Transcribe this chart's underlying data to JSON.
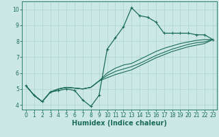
{
  "xlabel": "Humidex (Indice chaleur)",
  "bg_color": "#cce8e4",
  "grid_color": "#b0d8d0",
  "line_color": "#1a6b5a",
  "spine_color": "#2a7a68",
  "xlim": [
    -0.5,
    23.5
  ],
  "ylim": [
    3.7,
    10.5
  ],
  "xticks": [
    0,
    1,
    2,
    3,
    4,
    5,
    6,
    7,
    8,
    9,
    10,
    11,
    12,
    13,
    14,
    15,
    16,
    17,
    18,
    19,
    20,
    21,
    22,
    23
  ],
  "yticks": [
    4,
    5,
    6,
    7,
    8,
    9,
    10
  ],
  "series": [
    [
      5.2,
      4.6,
      4.2,
      4.8,
      4.9,
      5.0,
      4.9,
      4.3,
      3.9,
      4.6,
      7.5,
      8.2,
      8.9,
      10.1,
      9.6,
      9.5,
      9.2,
      8.5,
      8.5,
      8.5,
      8.5,
      8.4,
      8.4,
      8.1
    ],
    [
      5.2,
      4.6,
      4.2,
      4.8,
      5.0,
      5.1,
      5.05,
      5.0,
      5.1,
      5.5,
      6.0,
      6.3,
      6.5,
      6.6,
      6.85,
      7.1,
      7.35,
      7.55,
      7.7,
      7.85,
      7.95,
      8.05,
      8.1,
      8.1
    ],
    [
      5.2,
      4.6,
      4.2,
      4.8,
      5.0,
      5.1,
      5.05,
      5.0,
      5.1,
      5.5,
      5.85,
      6.1,
      6.25,
      6.4,
      6.6,
      6.85,
      7.1,
      7.3,
      7.5,
      7.65,
      7.8,
      7.9,
      7.95,
      8.1
    ],
    [
      5.2,
      4.6,
      4.2,
      4.8,
      5.0,
      5.1,
      5.05,
      5.0,
      5.1,
      5.5,
      5.7,
      5.9,
      6.05,
      6.2,
      6.45,
      6.7,
      6.95,
      7.15,
      7.35,
      7.5,
      7.65,
      7.75,
      7.85,
      8.1
    ]
  ],
  "tick_fontsize": 5.5,
  "xlabel_fontsize": 7
}
